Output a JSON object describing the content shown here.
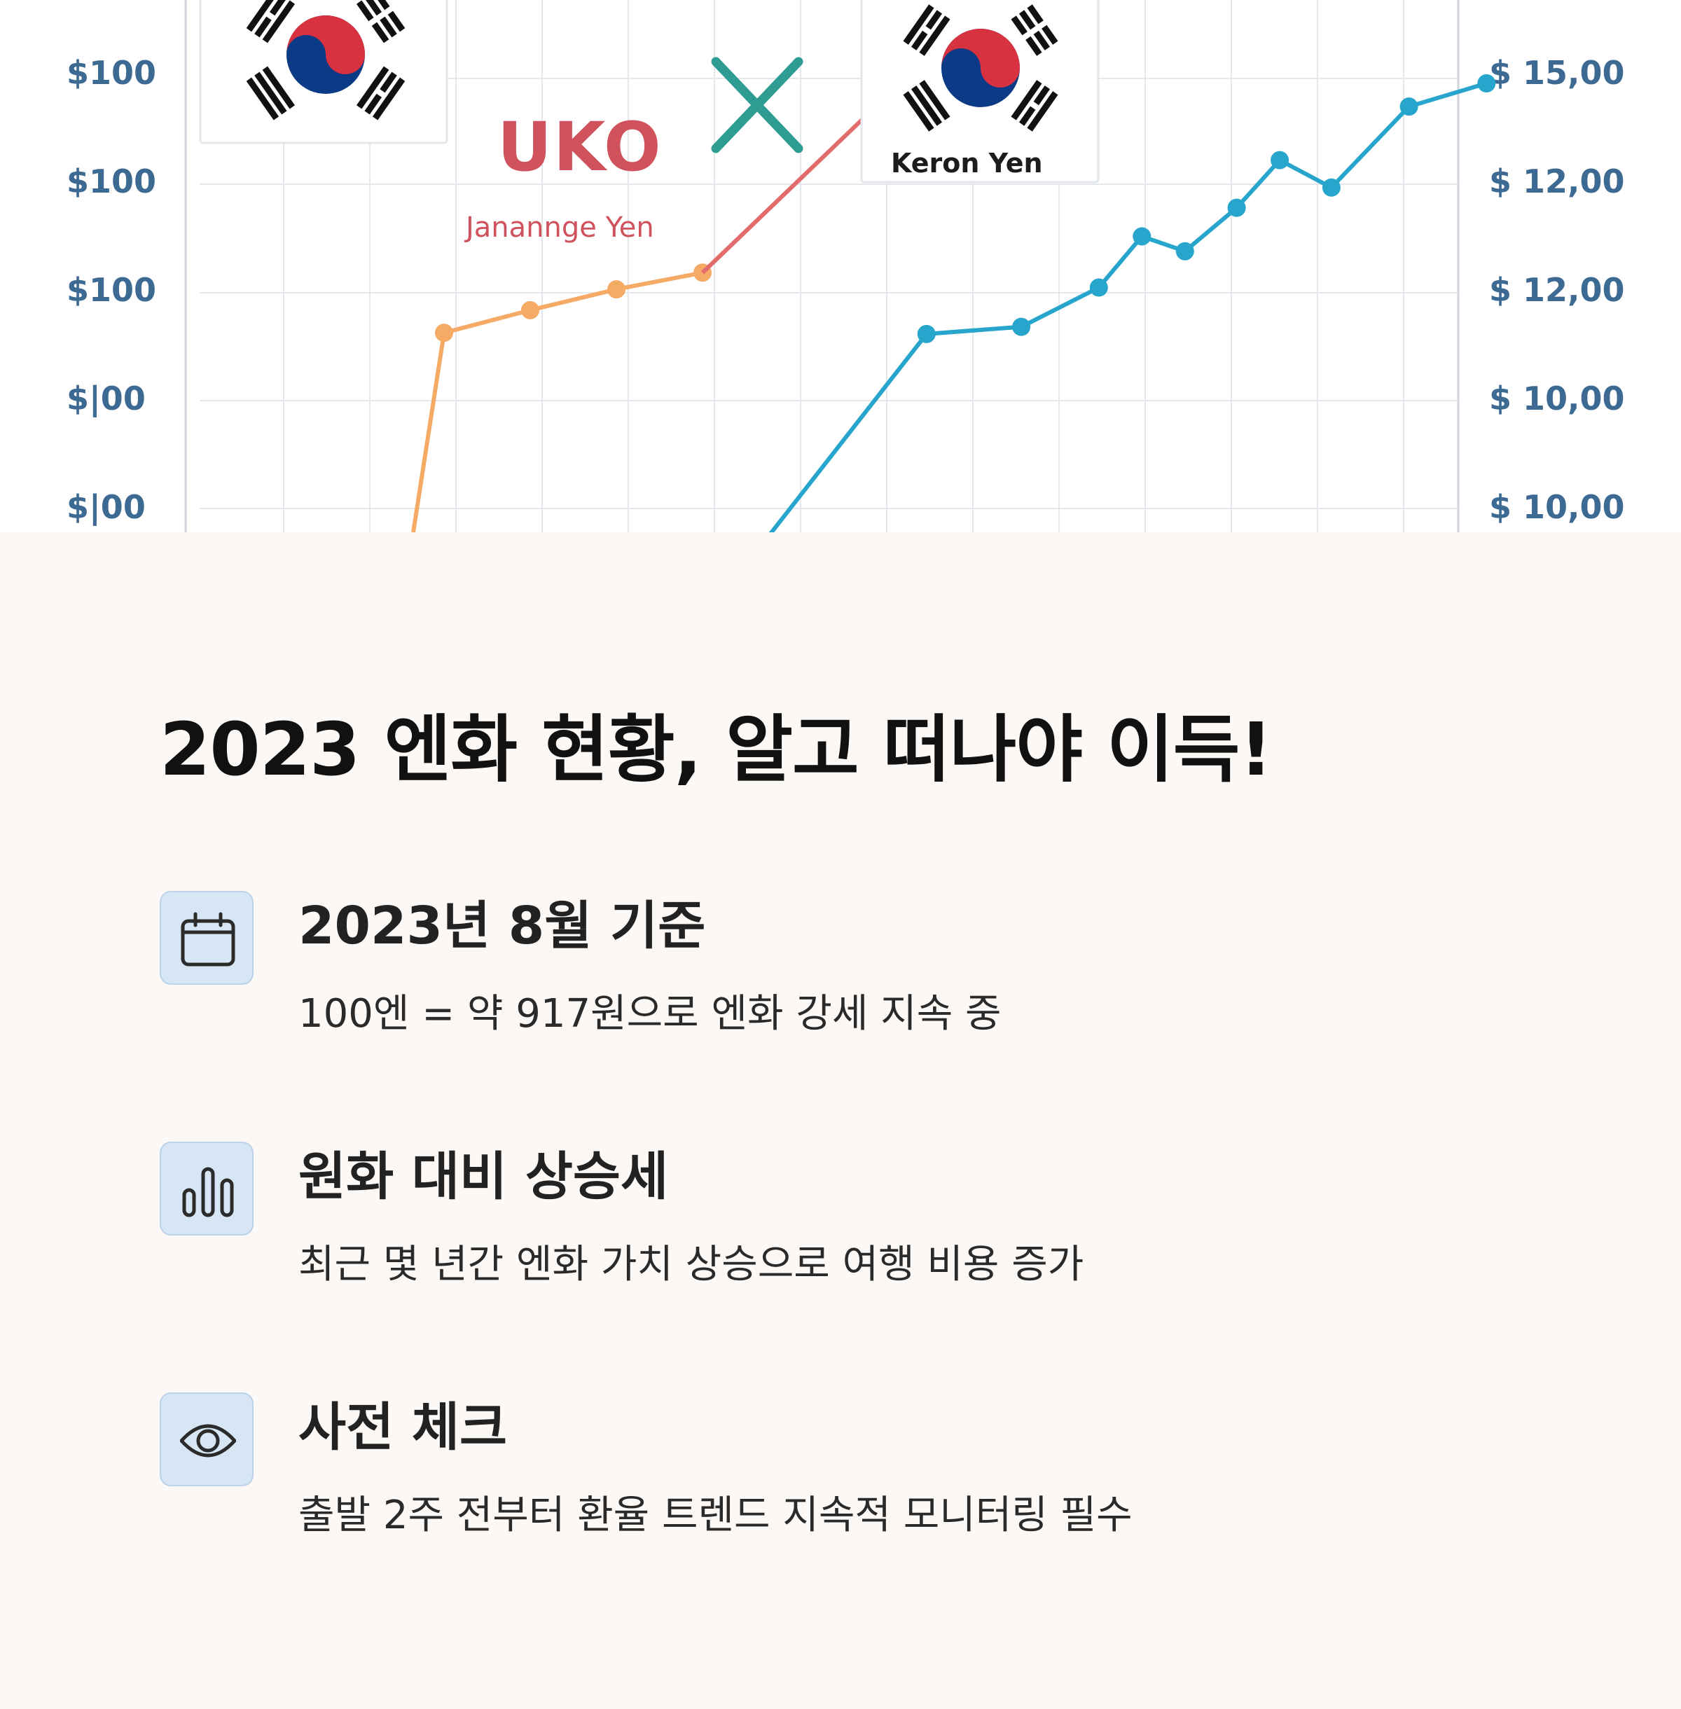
{
  "hero": {
    "brand_text": "UKO",
    "brand_subtitle": "Janannge Yen",
    "flag_label": "Keron Yen",
    "colors": {
      "red_line": "#e26b6b",
      "orange_series": "#f5aa66",
      "blue_series": "#27a5cc",
      "cross": "#2f9c93",
      "flag_red": "#d8313f",
      "flag_blue": "#0b3a86"
    },
    "icons": [
      "korea-flag",
      "cross-mark"
    ]
  },
  "chart_data": {
    "type": "line",
    "y_left_ticks": [
      "$100",
      "$100",
      "$100",
      "$|00",
      "$|00"
    ],
    "y_right_ticks": [
      "$ 15,00",
      "$ 12,00",
      "$ 12,00",
      "$ 10,00",
      "$ 10,00"
    ],
    "series": [
      {
        "color": "#f5aa66",
        "x": [
          3,
          4,
          5,
          6
        ],
        "y": [
          44.1,
          47.9,
          51.4,
          54.2
        ]
      },
      {
        "color": "#e26b6b",
        "x": [
          6,
          9.3
        ],
        "y": [
          54.2,
          100
        ]
      },
      {
        "color": "#27a5cc",
        "x": [
          8.6,
          9.7,
          10.6,
          11.1,
          11.6,
          12.2,
          12.7,
          13.3,
          14.2,
          15.1
        ],
        "y": [
          43.9,
          45.1,
          51.7,
          60.3,
          57.8,
          65.1,
          73.1,
          68.5,
          82.1,
          86.0
        ]
      }
    ]
  },
  "title": "2023 엔화 현황, 알고 떠나야 이득!",
  "items": [
    {
      "icon": "calendar-icon",
      "title": "2023년 8월 기준",
      "description": "100엔 = 약 917원으로 엔화 강세 지속 중"
    },
    {
      "icon": "bar-chart-icon",
      "title": "원화 대비 상승세",
      "description": "최근 몇 년간 엔화 가치 상승으로 여행 비용 증가"
    },
    {
      "icon": "eye-icon",
      "title": "사전 체크",
      "description": "출발 2주 전부터 환율 트렌드 지속적 모니터링 필수"
    }
  ]
}
